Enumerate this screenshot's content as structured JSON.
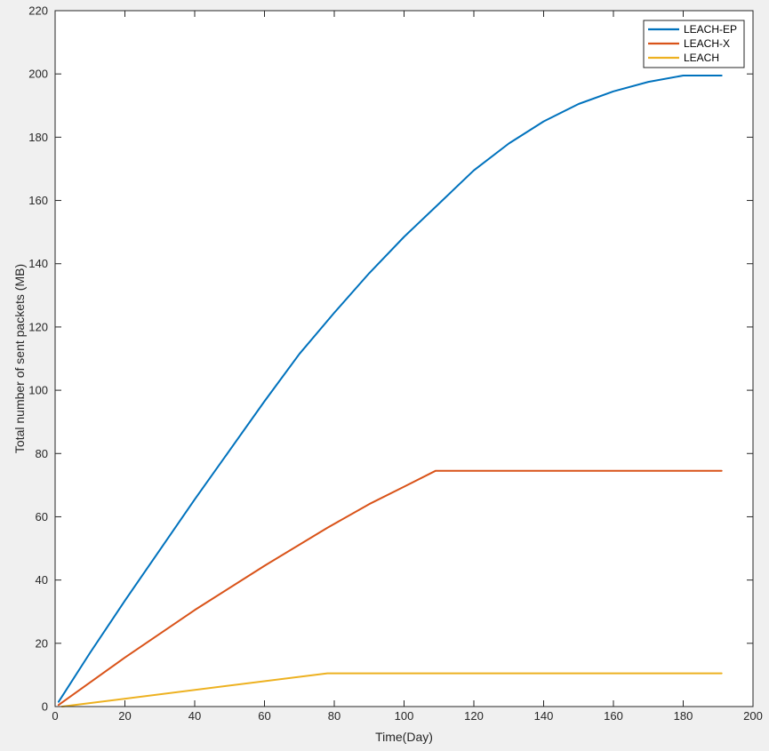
{
  "chart_data": {
    "type": "line",
    "title": "",
    "xlabel": "Time(Day)",
    "ylabel": "Total number of sent packets (MB)",
    "xlim": [
      0,
      200
    ],
    "ylim": [
      0,
      220
    ],
    "xticks": [
      0,
      20,
      40,
      60,
      80,
      100,
      120,
      140,
      160,
      180,
      200
    ],
    "yticks": [
      0,
      20,
      40,
      60,
      80,
      100,
      120,
      140,
      160,
      180,
      200,
      220
    ],
    "xtick_labels": [
      "0",
      "20",
      "40",
      "60",
      "80",
      "100",
      "120",
      "140",
      "160",
      "180",
      "200"
    ],
    "ytick_labels": [
      "0",
      "20",
      "40",
      "60",
      "80",
      "100",
      "120",
      "140",
      "160",
      "180",
      "200",
      "220"
    ],
    "grid": false,
    "legend_position": "top-right",
    "series": [
      {
        "name": "LEACH-EP",
        "color": "#0072BD",
        "x": [
          1,
          10,
          20,
          30,
          40,
          50,
          60,
          70,
          80,
          90,
          100,
          110,
          120,
          130,
          140,
          150,
          160,
          170,
          180,
          191
        ],
        "y": [
          1.5,
          17,
          33.5,
          49.5,
          65.5,
          81,
          96.5,
          111.5,
          124.5,
          137,
          148.5,
          159,
          169.5,
          178,
          185,
          190.5,
          194.5,
          197.5,
          199.5,
          199.5
        ]
      },
      {
        "name": "LEACH-X",
        "color": "#D95319",
        "x": [
          1,
          20,
          40,
          60,
          78,
          90,
          100,
          109,
          191
        ],
        "y": [
          0.5,
          15.5,
          30.5,
          44.5,
          56.5,
          64,
          69.5,
          74.5,
          74.5
        ]
      },
      {
        "name": "LEACH",
        "color": "#EDB120",
        "x": [
          2,
          78,
          191
        ],
        "y": [
          0,
          10.5,
          10.5
        ]
      }
    ]
  }
}
